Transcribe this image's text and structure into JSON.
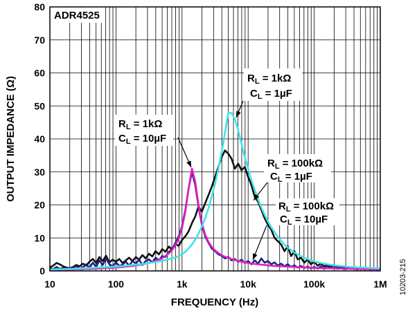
{
  "figure_id": "10203-215",
  "chart_data": {
    "type": "line",
    "title": "ADR4525",
    "xlabel": "FREQUENCY (Hz)",
    "ylabel": "OUTPUT IMPEDANCE (Ω)",
    "x_scale": "log",
    "xlim": [
      10,
      1000000
    ],
    "ylim": [
      0,
      80
    ],
    "grid": true,
    "legend": "none",
    "x_ticks": [
      10,
      100,
      1000,
      10000,
      100000,
      1000000
    ],
    "x_tick_labels": [
      "10",
      "100",
      "1k",
      "10k",
      "100k",
      "1M"
    ],
    "y_ticks": [
      0,
      10,
      20,
      30,
      40,
      50,
      60,
      70,
      80
    ],
    "y_tick_labels": [
      "0",
      "10",
      "20",
      "30",
      "40",
      "50",
      "60",
      "70",
      "80"
    ],
    "x": [
      10,
      11.2,
      12.6,
      14.1,
      15.8,
      17.8,
      20,
      22.4,
      25.1,
      28.2,
      31.6,
      35.5,
      39.8,
      44.7,
      50.1,
      56.2,
      63.1,
      70.8,
      79.4,
      89.1,
      100,
      112,
      126,
      141,
      158,
      178,
      200,
      224,
      251,
      282,
      316,
      355,
      398,
      447,
      501,
      562,
      631,
      708,
      794,
      891,
      1000,
      1122,
      1259,
      1413,
      1585,
      1778,
      1995,
      2239,
      2512,
      2818,
      3162,
      3548,
      3981,
      4467,
      5012,
      5623,
      6310,
      7079,
      7943,
      8913,
      10000,
      11220,
      12590,
      14130,
      15850,
      17780,
      19950,
      22390,
      25120,
      28180,
      31620,
      35480,
      39810,
      44670,
      50120,
      56230,
      63100,
      70790,
      79430,
      89130,
      100000,
      112200,
      125900,
      141300,
      158500,
      177800,
      199500,
      223900,
      251200,
      281800,
      316200,
      354800,
      398100,
      446700,
      501200,
      562300,
      631000,
      707900,
      794300,
      891300,
      1000000
    ],
    "series": [
      {
        "color": "#3ee4e8",
        "label": [
          {
            "sym": "R",
            "sub": "L",
            "val": " = 1kΩ"
          },
          {
            "sym": "C",
            "sub": "L",
            "val": " = 1µF"
          }
        ],
        "values": [
          0.4,
          0.45,
          0.5,
          0.5,
          0.55,
          0.6,
          0.6,
          0.65,
          0.7,
          0.75,
          0.8,
          0.85,
          0.9,
          0.95,
          1.0,
          1.05,
          1.1,
          1.15,
          1.2,
          1.25,
          1.3,
          1.4,
          1.5,
          1.6,
          1.7,
          1.8,
          1.9,
          2.0,
          2.1,
          2.25,
          2.4,
          2.55,
          2.7,
          2.9,
          3.1,
          3.3,
          3.55,
          3.8,
          4.1,
          4.5,
          5.0,
          5.8,
          6.8,
          8.0,
          9.5,
          11.3,
          13.5,
          16.0,
          19.0,
          22.5,
          26.5,
          31.0,
          36.0,
          42.0,
          48.0,
          47.8,
          46.0,
          42.5,
          38.5,
          34.5,
          31.0,
          27.5,
          24.5,
          21.7,
          19.2,
          17.0,
          15.0,
          13.2,
          11.7,
          10.3,
          9.1,
          8.0,
          7.1,
          6.3,
          5.6,
          5.0,
          4.5,
          4.0,
          3.6,
          3.2,
          2.9,
          2.6,
          2.4,
          2.2,
          2.0,
          1.85,
          1.7,
          1.6,
          1.5,
          1.4,
          1.3,
          1.2,
          1.15,
          1.1,
          1.05,
          1.0,
          0.95,
          0.9,
          0.85,
          0.8,
          0.8
        ]
      },
      {
        "color": "#e01ec6",
        "label": [
          {
            "sym": "R",
            "sub": "L",
            "val": " = 1kΩ"
          },
          {
            "sym": "C",
            "sub": "L",
            "val": " = 10µF"
          }
        ],
        "values": [
          0.3,
          0.3,
          0.35,
          0.35,
          0.4,
          0.4,
          0.45,
          0.45,
          0.5,
          0.5,
          0.55,
          0.6,
          0.6,
          0.65,
          0.7,
          0.75,
          0.8,
          0.85,
          0.9,
          0.95,
          1.0,
          1.1,
          1.2,
          1.3,
          1.4,
          1.5,
          1.65,
          1.8,
          2.0,
          2.2,
          2.4,
          2.7,
          3.0,
          3.4,
          3.9,
          4.5,
          5.3,
          6.3,
          7.8,
          9.8,
          13.0,
          18.0,
          25.0,
          31.0,
          27.0,
          20.0,
          14.5,
          11.0,
          8.8,
          7.3,
          6.2,
          5.4,
          4.8,
          4.3,
          3.9,
          3.6,
          3.3,
          3.05,
          2.8,
          2.6,
          2.4,
          2.25,
          2.1,
          2.0,
          1.9,
          1.8,
          1.7,
          1.6,
          1.5,
          1.45,
          1.4,
          1.35,
          1.3,
          1.25,
          1.2,
          1.15,
          1.1,
          1.05,
          1.0,
          0.95,
          0.9,
          0.88,
          0.85,
          0.82,
          0.8,
          0.78,
          0.75,
          0.72,
          0.7,
          0.68,
          0.65,
          0.63,
          0.6,
          0.6,
          0.58,
          0.55,
          0.55,
          0.52,
          0.5,
          0.5,
          0.5
        ]
      },
      {
        "color": "#111111",
        "label": [
          {
            "sym": "R",
            "sub": "L",
            "val": " = 100kΩ"
          },
          {
            "sym": "C",
            "sub": "L",
            "val": " = 1µF"
          }
        ],
        "values": [
          1.0,
          1.6,
          2.4,
          2.0,
          1.4,
          1.0,
          0.8,
          1.2,
          1.8,
          1.4,
          2.2,
          1.6,
          2.8,
          3.6,
          2.4,
          4.2,
          3.0,
          4.6,
          2.6,
          3.4,
          2.8,
          3.6,
          2.4,
          3.2,
          4.0,
          3.0,
          4.2,
          3.4,
          4.8,
          3.8,
          5.2,
          4.4,
          6.0,
          5.0,
          6.6,
          5.8,
          7.4,
          6.4,
          8.2,
          7.6,
          9.4,
          10.5,
          12.0,
          14.5,
          16.5,
          19.5,
          18.0,
          20.5,
          23.0,
          25.5,
          28.5,
          31.5,
          34.5,
          36.5,
          35.5,
          34.0,
          31.0,
          32.5,
          30.5,
          31.5,
          28.5,
          26.0,
          22.5,
          21.0,
          18.5,
          16.0,
          14.0,
          12.5,
          10.0,
          9.0,
          8.0,
          6.0,
          7.5,
          4.5,
          6.0,
          3.5,
          4.0,
          2.5,
          3.5,
          2.0,
          2.8,
          1.6,
          2.2,
          1.4,
          1.8,
          1.2,
          1.5,
          1.0,
          1.3,
          0.9,
          1.1,
          0.8,
          1.0,
          0.7,
          0.9,
          0.6,
          0.8,
          0.6,
          0.7,
          0.5,
          0.6
        ]
      },
      {
        "color": "#202080",
        "label": [
          {
            "sym": "R",
            "sub": "L",
            "val": " = 100kΩ"
          },
          {
            "sym": "C",
            "sub": "L",
            "val": " = 10µF"
          }
        ],
        "values": [
          0.8,
          0.5,
          1.2,
          0.6,
          0.9,
          0.4,
          1.0,
          0.7,
          1.5,
          0.6,
          1.1,
          2.0,
          0.9,
          2.5,
          1.2,
          3.2,
          1.8,
          3.8,
          2.0,
          1.4,
          2.6,
          1.5,
          1.9,
          2.8,
          1.6,
          3.0,
          2.2,
          3.4,
          1.8,
          3.0,
          3.5,
          2.6,
          4.0,
          3.2,
          4.5,
          4.2,
          5.8,
          6.5,
          8.5,
          10.5,
          13.5,
          18.5,
          25.0,
          30.0,
          26.0,
          19.5,
          14.0,
          10.5,
          8.5,
          6.8,
          6.0,
          5.0,
          4.6,
          3.8,
          4.2,
          3.2,
          3.6,
          2.8,
          3.4,
          2.4,
          3.0,
          2.0,
          3.2,
          2.2,
          3.8,
          2.5,
          3.0,
          2.0,
          2.6,
          1.6,
          2.2,
          1.4,
          2.0,
          1.2,
          1.7,
          1.0,
          1.5,
          0.9,
          1.3,
          0.8,
          1.2,
          0.7,
          1.4,
          0.6,
          1.5,
          0.8,
          1.8,
          0.6,
          1.3,
          0.5,
          1.1,
          0.6,
          0.9,
          0.4,
          0.8,
          0.5,
          0.7,
          0.4,
          0.6,
          0.4,
          0.5
        ]
      }
    ]
  }
}
